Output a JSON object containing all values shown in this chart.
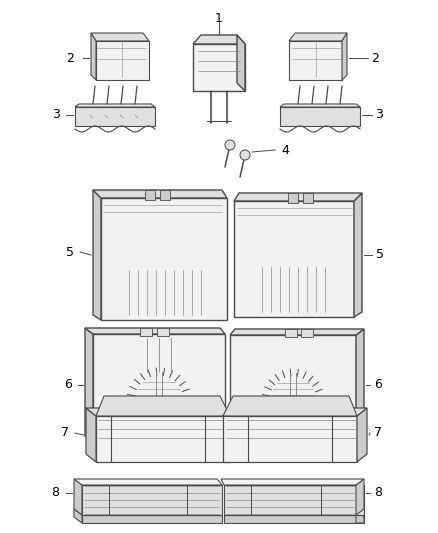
{
  "background_color": "#ffffff",
  "line_color": "#4a4a4a",
  "label_color": "#000000",
  "figsize": [
    4.38,
    5.33
  ],
  "dpi": 100,
  "lc": "#4a4a4a",
  "lc2": "#888888",
  "fc_light": "#f2f2f2",
  "fc_mid": "#e0e0e0",
  "fc_dark": "#cccccc"
}
